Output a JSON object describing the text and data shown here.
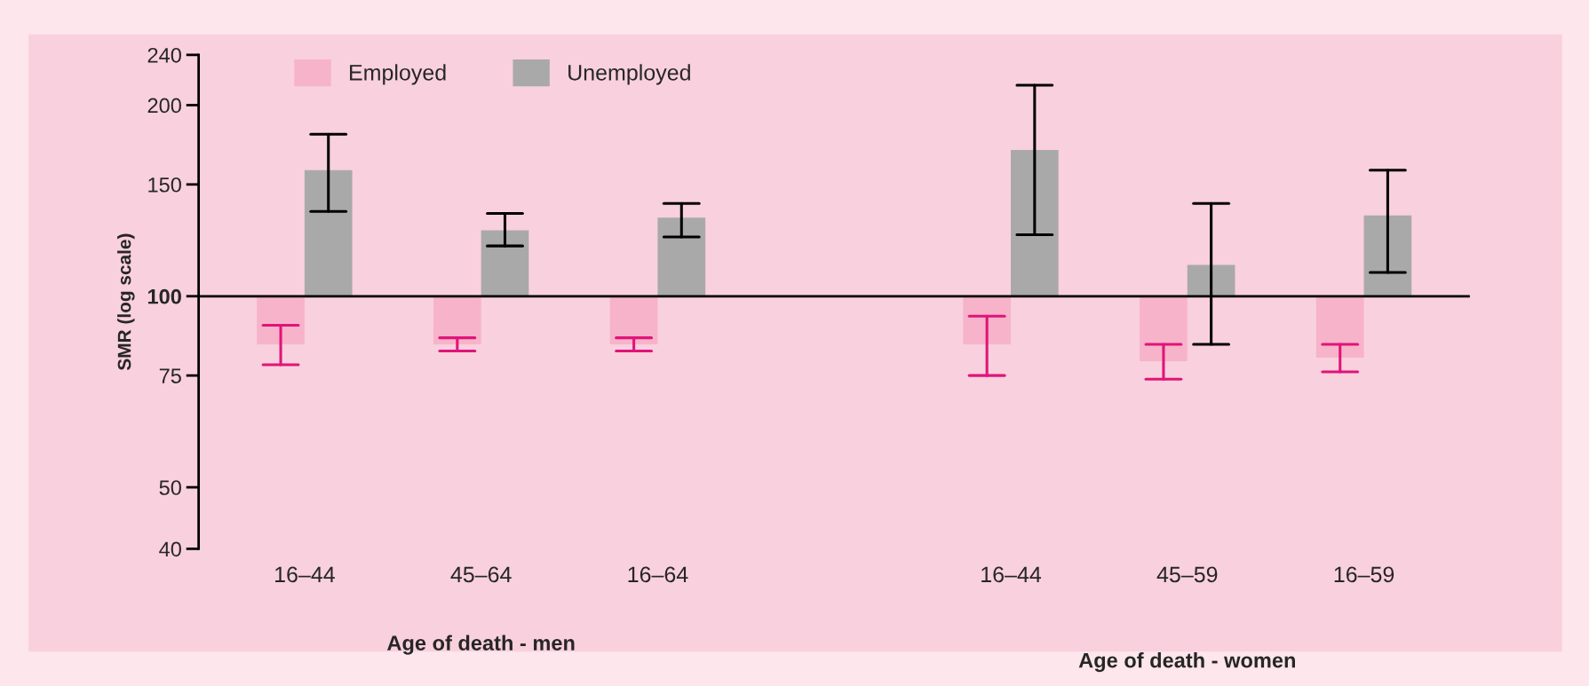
{
  "chart_data": {
    "type": "bar",
    "ylabel": "SMR (log scale)",
    "log": true,
    "categories": [
      "16–44",
      "45–64",
      "16–64",
      null,
      "16–44",
      "45–59",
      "16–59"
    ],
    "series": [
      {
        "name": "Employed",
        "color": "#f7b3c9",
        "base": [
          100,
          100,
          100,
          null,
          100,
          100,
          100
        ],
        "values": [
          -16,
          -16,
          -16,
          null,
          -16,
          -21,
          -20
        ],
        "errors": [
          [
            78,
            90
          ],
          [
            82,
            86
          ],
          [
            82,
            86
          ],
          null,
          [
            75,
            93
          ],
          [
            74,
            84
          ],
          [
            76,
            84
          ]
        ]
      },
      {
        "name": "Unemployed",
        "color": "#a9a9a9",
        "base": [
          100,
          100,
          100,
          null,
          100,
          100,
          100
        ],
        "values": [
          58,
          27,
          33,
          null,
          70,
          12,
          34
        ],
        "errors": [
          [
            136,
            180
          ],
          [
            120,
            135
          ],
          [
            124,
            140
          ],
          null,
          [
            125,
            215
          ],
          [
            84,
            140
          ],
          [
            109,
            158
          ]
        ]
      }
    ],
    "ylim": [
      40,
      240
    ],
    "yticks": [
      40,
      50,
      75,
      {
        "value": 100,
        "label": "100"
      },
      150,
      200,
      240
    ],
    "ref_lines": [
      {
        "axis": "y",
        "value": 100,
        "color": "#000000"
      }
    ],
    "annotations": [
      "Age of death - men",
      "Age of death - women"
    ],
    "legend": "top left",
    "grid": false
  }
}
